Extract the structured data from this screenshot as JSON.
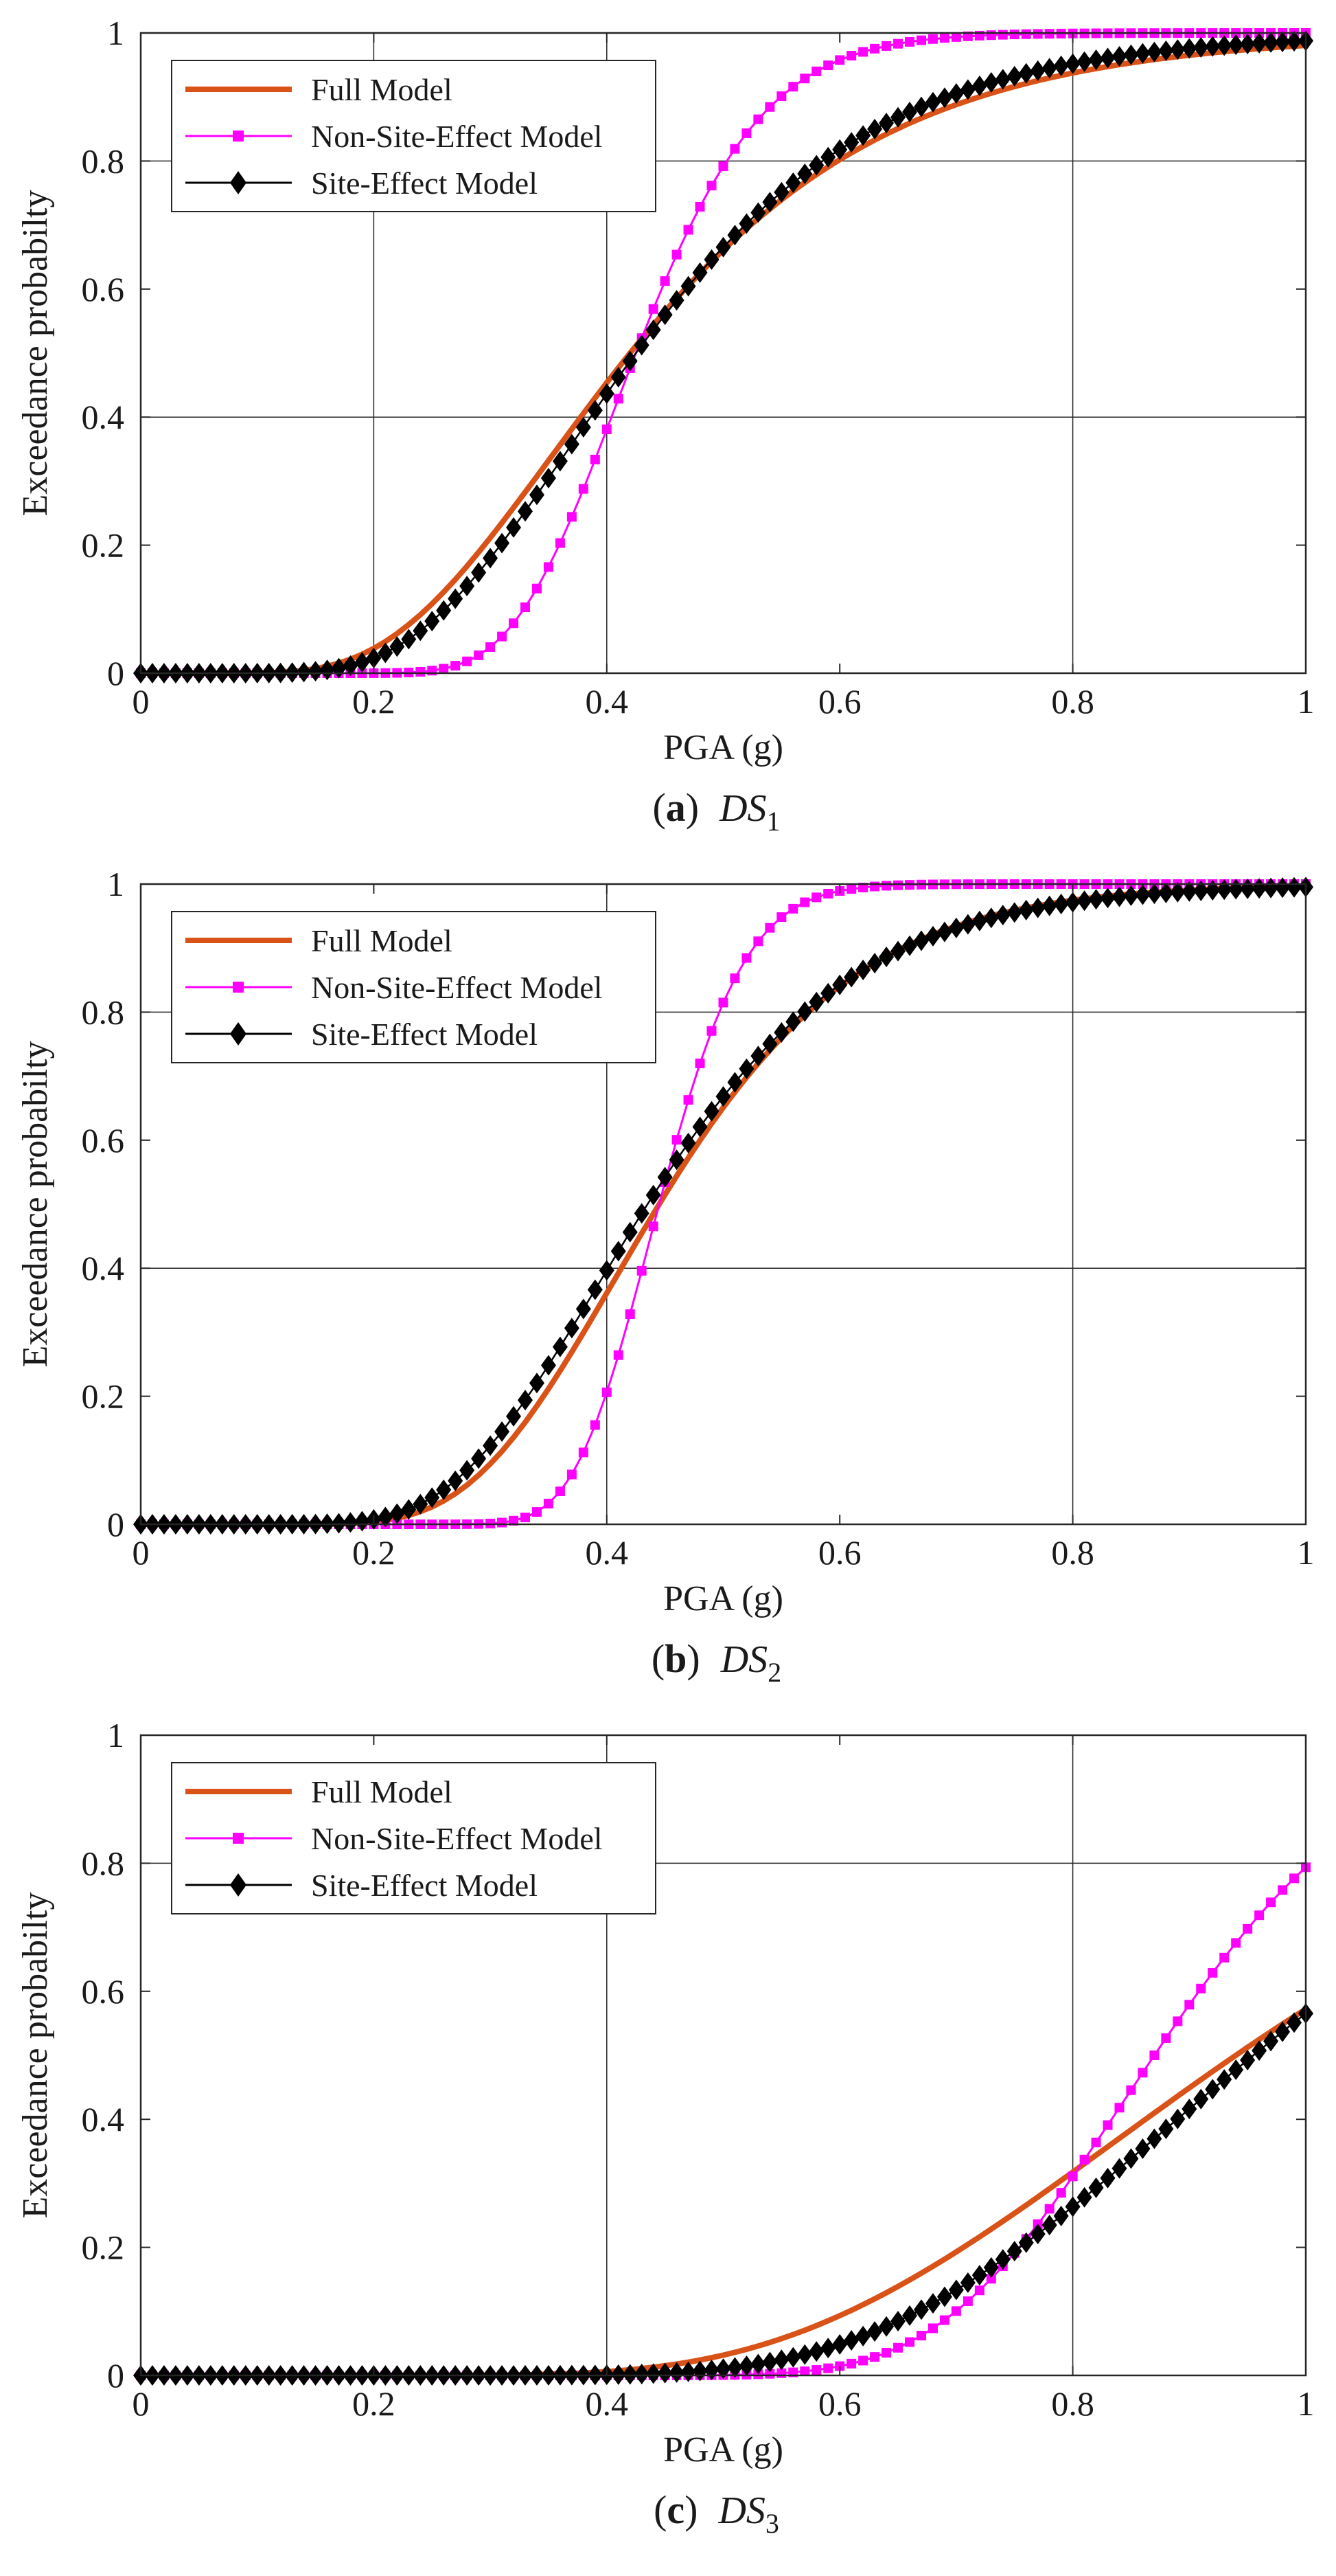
{
  "figure": {
    "series_colors": {
      "Full Model": "#d95319",
      "Non-Site-Effect Model": "#ff00ff",
      "Site-Effect Model": "#000000"
    },
    "grid_color": "#262626"
  },
  "chart_data": [
    {
      "type": "line",
      "panel_letter": "a",
      "damage_state": "DS",
      "damage_state_sub": "1",
      "xlabel": "PGA (g)",
      "ylabel": "Exceedance probabilty",
      "xlim": [
        0,
        1
      ],
      "ylim": [
        0,
        1
      ],
      "xticks": [
        0,
        0.2,
        0.4,
        0.6,
        0.8,
        1
      ],
      "yticks": [
        0,
        0.2,
        0.4,
        0.6,
        0.8,
        1
      ],
      "tick_labels_x": [
        "0",
        "0.2",
        "0.4",
        "0.6",
        "0.8",
        "1"
      ],
      "tick_labels_y": [
        "0",
        "0.2",
        "0.4",
        "0.6",
        "0.8",
        "1"
      ],
      "grid_x": [
        0.2,
        0.4,
        0.8
      ],
      "grid_y": [
        0.4,
        0.8
      ],
      "legend_position": "top-left",
      "series": [
        {
          "name": "Full Model",
          "marker": "none",
          "median": 0.42,
          "beta": 0.42
        },
        {
          "name": "Non-Site-Effect Model",
          "marker": "square",
          "median": 0.425,
          "beta": 0.2
        },
        {
          "name": "Site-Effect Model",
          "marker": "diamond",
          "median": 0.425,
          "beta": 0.38
        }
      ]
    },
    {
      "type": "line",
      "panel_letter": "b",
      "damage_state": "DS",
      "damage_state_sub": "2",
      "xlabel": "PGA (g)",
      "ylabel": "Exceedance probabilty",
      "xlim": [
        0,
        1
      ],
      "ylim": [
        0,
        1
      ],
      "xticks": [
        0,
        0.2,
        0.4,
        0.6,
        0.8,
        1
      ],
      "yticks": [
        0,
        0.2,
        0.4,
        0.6,
        0.8,
        1
      ],
      "tick_labels_x": [
        "0",
        "0.2",
        "0.4",
        "0.6",
        "0.8",
        "1"
      ],
      "tick_labels_y": [
        "0",
        "0.2",
        "0.4",
        "0.6",
        "0.8",
        "1"
      ],
      "grid_x": [
        0.4,
        0.8
      ],
      "grid_y": [
        0.4,
        0.8
      ],
      "legend_position": "top-left",
      "series": [
        {
          "name": "Full Model",
          "marker": "none",
          "median": 0.445,
          "beta": 0.3
        },
        {
          "name": "Non-Site-Effect Model",
          "marker": "square",
          "median": 0.445,
          "beta": 0.13
        },
        {
          "name": "Site-Effect Model",
          "marker": "diamond",
          "median": 0.435,
          "beta": 0.32
        }
      ]
    },
    {
      "type": "line",
      "panel_letter": "c",
      "damage_state": "DS",
      "damage_state_sub": "3",
      "xlabel": "PGA (g)",
      "ylabel": "Exceedance probabilty",
      "xlim": [
        0,
        1
      ],
      "ylim": [
        0,
        1
      ],
      "xticks": [
        0,
        0.2,
        0.4,
        0.6,
        0.8,
        1
      ],
      "yticks": [
        0,
        0.2,
        0.4,
        0.6,
        0.8,
        1
      ],
      "tick_labels_x": [
        "0",
        "0.2",
        "0.4",
        "0.6",
        "0.8",
        "1"
      ],
      "tick_labels_y": [
        "0",
        "0.2",
        "0.4",
        "0.6",
        "0.8",
        "1"
      ],
      "grid_x": [
        0.4,
        0.8
      ],
      "grid_y": [
        0.8
      ],
      "legend_position": "top-left",
      "series": [
        {
          "name": "Full Model",
          "marker": "none",
          "median": 0.94,
          "beta": 0.34
        },
        {
          "name": "Non-Site-Effect Model",
          "marker": "square",
          "median": 0.87,
          "beta": 0.17
        },
        {
          "name": "Site-Effect Model",
          "marker": "diamond",
          "median": 0.955,
          "beta": 0.28
        }
      ]
    }
  ]
}
